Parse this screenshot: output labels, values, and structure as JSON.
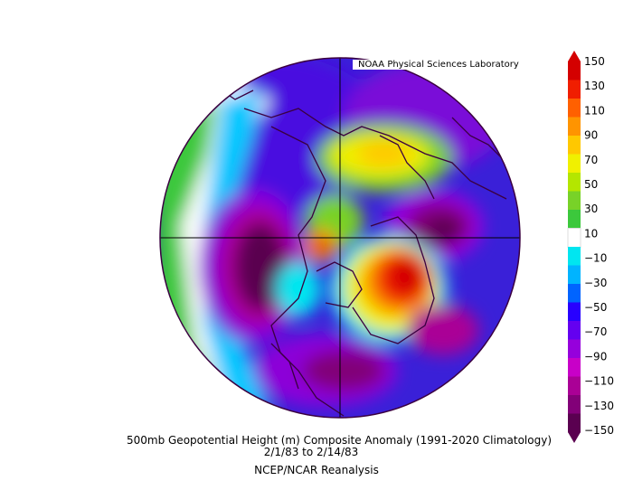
{
  "credit": "NOAA Physical Sciences Laboratory",
  "caption": {
    "title": "500mb Geopotential Height (m) Composite Anomaly (1991-2020 Climatology)",
    "dates": "2/1/83  to 2/14/83",
    "source": "NCEP/NCAR Reanalysis"
  },
  "colorbar": {
    "labels": [
      "150",
      "130",
      "110",
      "90",
      "70",
      "50",
      "30",
      "10",
      "-10",
      "-30",
      "-50",
      "-70",
      "-90",
      "-110",
      "-130",
      "-150"
    ],
    "colors": [
      "#d40000",
      "#f01e00",
      "#ff6000",
      "#ff9400",
      "#ffc800",
      "#f0f000",
      "#b4e600",
      "#78d228",
      "#3cc83c",
      "#ffffff",
      "#00e6f0",
      "#00b4ff",
      "#0064ff",
      "#2800ff",
      "#6400f0",
      "#9600dc",
      "#c800c8",
      "#aa0096",
      "#820078",
      "#5a0050"
    ],
    "units": "m"
  },
  "map": {
    "projection": "north-polar-stereographic",
    "anomaly_centers": [
      {
        "region": "north-atlantic",
        "sign": "positive",
        "value": 150
      },
      {
        "region": "north-pacific",
        "sign": "negative",
        "value": -150
      },
      {
        "region": "siberia",
        "sign": "negative",
        "value": -150
      },
      {
        "region": "canadian-arctic",
        "sign": "positive",
        "value": 80
      }
    ]
  }
}
